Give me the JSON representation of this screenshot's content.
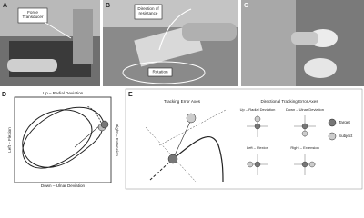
{
  "panels": {
    "a": {
      "label": "A",
      "callout": "Force\nTransducer"
    },
    "b": {
      "label": "B",
      "callout_direction": "Direction of\nresistance",
      "callout_rotation": "Rotation"
    },
    "c": {
      "label": "C"
    },
    "d": {
      "label": "D",
      "top": "Up – Radial Deviation",
      "bottom": "Down – Ulnar Deviation",
      "left": "Left – Flexion",
      "right": "Right – Extension"
    },
    "e": {
      "label": "E",
      "left_title": "Tracking Error Axes",
      "right_title": "Directional Tracking Error Axes",
      "legend": [
        "Target",
        "Subject"
      ],
      "directions": [
        "Up – Radial Deviation",
        "Down – Ulnar Deviation",
        "Left – Flexion",
        "Right – Extension"
      ]
    }
  }
}
